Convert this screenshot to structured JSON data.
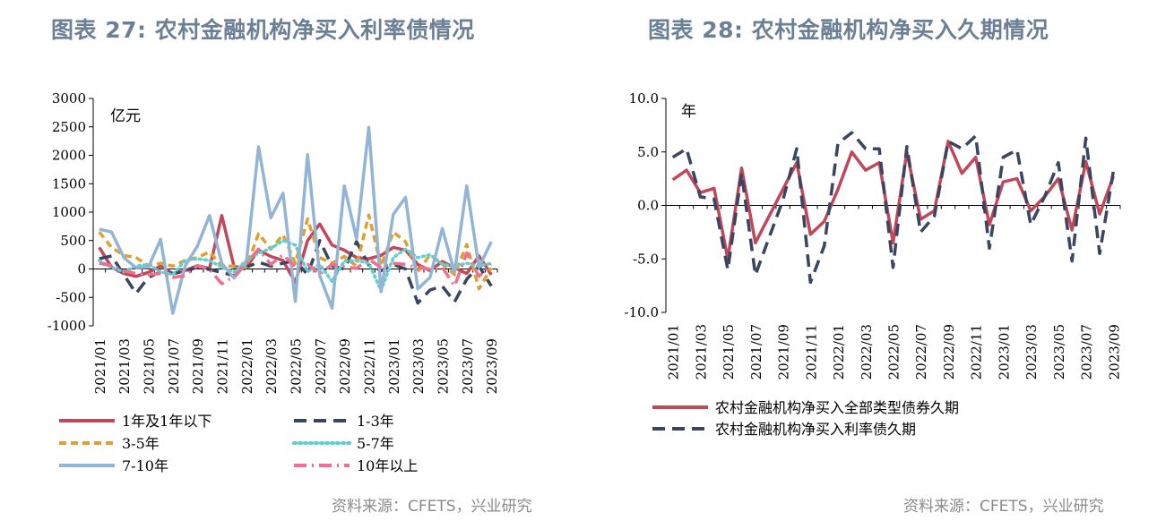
{
  "titles": {
    "left": "图表 27: 农村金融机构净买入利率债情况",
    "right": "图表 28: 农村金融机构净买入久期情况"
  },
  "sources": {
    "left": "资料来源：CFETS，兴业研究",
    "right": "资料来源：CFETS，兴业研究"
  },
  "chart_data": [
    {
      "type": "line",
      "unit_label": "亿元",
      "ylim": [
        -1000,
        3000
      ],
      "yticks": [
        3000,
        2500,
        2000,
        1500,
        1000,
        500,
        0,
        -500,
        -1000
      ],
      "x": [
        "2021/01",
        "2021/02",
        "2021/03",
        "2021/04",
        "2021/05",
        "2021/06",
        "2021/07",
        "2021/08",
        "2021/09",
        "2021/10",
        "2021/11",
        "2021/12",
        "2022/01",
        "2022/02",
        "2022/03",
        "2022/04",
        "2022/05",
        "2022/06",
        "2022/07",
        "2022/08",
        "2022/09",
        "2022/10",
        "2022/11",
        "2022/12",
        "2023/01",
        "2023/02",
        "2023/03",
        "2023/04",
        "2023/05",
        "2023/06",
        "2023/07",
        "2023/08",
        "2023/09"
      ],
      "xtick_labels": [
        "2021/01",
        "2021/03",
        "2021/05",
        "2021/07",
        "2021/09",
        "2021/11",
        "2022/01",
        "2022/03",
        "2022/05",
        "2022/07",
        "2022/09",
        "2022/11",
        "2023/01",
        "2023/03",
        "2023/05",
        "2023/07",
        "2023/09"
      ],
      "grid": false,
      "legend": "bottom",
      "series": [
        {
          "name": "1年及1年以下",
          "color": "#c0485a",
          "dash": "solid",
          "values": [
            380,
            30,
            -80,
            -130,
            -60,
            50,
            -80,
            -30,
            60,
            10,
            940,
            40,
            30,
            330,
            220,
            150,
            -240,
            500,
            790,
            420,
            330,
            200,
            180,
            240,
            380,
            330,
            80,
            -30,
            130,
            20,
            -80,
            230,
            -100
          ]
        },
        {
          "name": "1-3年",
          "color": "#3a4560",
          "dash": "long",
          "values": [
            180,
            230,
            -100,
            -430,
            -150,
            -50,
            -80,
            -40,
            30,
            -10,
            -60,
            -120,
            30,
            120,
            50,
            100,
            150,
            -100,
            500,
            50,
            0,
            480,
            70,
            -30,
            80,
            0,
            -600,
            -370,
            -300,
            -580,
            -180,
            50,
            -300
          ]
        },
        {
          "name": "3-5年",
          "color": "#e0a030",
          "dash": "short",
          "values": [
            650,
            380,
            240,
            200,
            60,
            100,
            50,
            150,
            200,
            300,
            50,
            50,
            30,
            620,
            350,
            600,
            100,
            880,
            200,
            100,
            220,
            50,
            950,
            50,
            650,
            480,
            -50,
            250,
            100,
            -100,
            430,
            -350,
            20
          ]
        },
        {
          "name": "5-7年",
          "color": "#5fcfcf",
          "dash": "dot",
          "values": [
            150,
            30,
            -50,
            50,
            80,
            -50,
            -100,
            150,
            180,
            150,
            30,
            -50,
            150,
            280,
            360,
            500,
            420,
            -50,
            80,
            -220,
            140,
            150,
            100,
            -380,
            200,
            350,
            200,
            250,
            80,
            50,
            100,
            50,
            100
          ]
        },
        {
          "name": "7-10年",
          "color": "#93b5d5",
          "dash": "solid",
          "values": [
            700,
            650,
            200,
            20,
            30,
            520,
            -780,
            50,
            400,
            940,
            100,
            -160,
            100,
            2150,
            900,
            1330,
            -570,
            2010,
            -120,
            -690,
            1460,
            530,
            2490,
            -400,
            960,
            1260,
            -350,
            -150,
            710,
            -60,
            1460,
            30,
            480
          ]
        },
        {
          "name": "10年以上",
          "color": "#ee7090",
          "dash": "dashdot",
          "values": [
            100,
            60,
            -30,
            -80,
            -100,
            -80,
            -150,
            -120,
            60,
            -10,
            -260,
            -130,
            100,
            350,
            80,
            250,
            40,
            80,
            -90,
            80,
            40,
            10,
            180,
            20,
            100,
            80,
            20,
            0,
            30,
            -300,
            280,
            -130,
            80
          ]
        }
      ]
    },
    {
      "type": "line",
      "unit_label": "年",
      "ylim": [
        -10,
        10
      ],
      "yticks": [
        "10.0",
        "5.0",
        "0.0",
        "-5.0",
        "-10.0"
      ],
      "x": [
        "2021/01",
        "2021/02",
        "2021/03",
        "2021/04",
        "2021/05",
        "2021/06",
        "2021/07",
        "2021/08",
        "2021/09",
        "2021/10",
        "2021/11",
        "2021/12",
        "2022/01",
        "2022/02",
        "2022/03",
        "2022/04",
        "2022/05",
        "2022/06",
        "2022/07",
        "2022/08",
        "2022/09",
        "2022/10",
        "2022/11",
        "2022/12",
        "2023/01",
        "2023/02",
        "2023/03",
        "2023/04",
        "2023/05",
        "2023/06",
        "2023/07",
        "2023/08",
        "2023/09"
      ],
      "xtick_labels": [
        "2021/01",
        "2021/03",
        "2021/05",
        "2021/07",
        "2021/09",
        "2021/11",
        "2022/01",
        "2022/03",
        "2022/05",
        "2022/07",
        "2022/09",
        "2022/11",
        "2023/01",
        "2023/03",
        "2023/05",
        "2023/07",
        "2023/09"
      ],
      "grid": false,
      "legend": "bottom",
      "series": [
        {
          "name": "农村金融机构净买入全部类型债券久期",
          "color": "#c0485a",
          "dash": "solid",
          "values": [
            2.4,
            3.3,
            1.2,
            1.6,
            -5.0,
            3.5,
            -3.5,
            -1.0,
            1.5,
            4.0,
            -2.7,
            -1.5,
            1.5,
            5.0,
            3.3,
            4.0,
            -3.5,
            5.0,
            -1.3,
            -0.5,
            6.0,
            3.0,
            4.5,
            -1.8,
            2.2,
            2.5,
            -0.5,
            0.8,
            2.5,
            -2.3,
            4.1,
            -0.8,
            2.7
          ]
        },
        {
          "name": "农村金融机构净买入利率债久期",
          "color": "#3a4560",
          "dash": "long",
          "values": [
            4.5,
            5.3,
            0.8,
            0.6,
            -6.0,
            3.0,
            -6.5,
            -3.0,
            0.5,
            5.3,
            -7.2,
            -3.8,
            5.8,
            6.8,
            5.3,
            5.3,
            -5.8,
            5.5,
            -2.5,
            -1.0,
            6.0,
            5.3,
            6.5,
            -4.0,
            4.5,
            5.2,
            -1.8,
            0.8,
            4.0,
            -5.2,
            6.3,
            -4.5,
            3.2
          ]
        }
      ]
    }
  ]
}
